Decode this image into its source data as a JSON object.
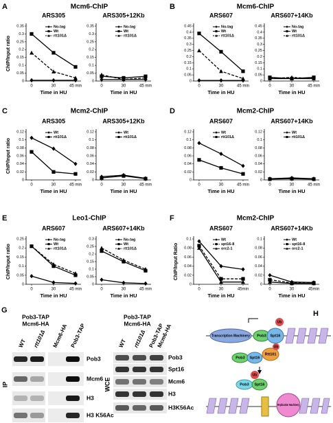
{
  "panels": [
    {
      "letter": "A",
      "title": "Mcm6-ChIP"
    },
    {
      "letter": "B",
      "title": "Mcm6-ChIP"
    },
    {
      "letter": "C",
      "title": "Mcm2-ChIP"
    },
    {
      "letter": "D",
      "title": "Mcm2-ChIP"
    },
    {
      "letter": "E",
      "title": "Leo1-ChIP"
    },
    {
      "letter": "F",
      "title": "Mcm2-ChIP"
    },
    {
      "letter": "G"
    },
    {
      "letter": "H"
    }
  ],
  "chart_data": [
    {
      "type": "line",
      "title": "ARS305",
      "ylabel": "ChIP/Input ratio",
      "xlabel": "Time in HU",
      "categories": [
        "0",
        "30",
        "45 min"
      ],
      "ylim": [
        0,
        0.35
      ],
      "yticks": [
        0,
        0.05,
        0.1,
        0.15,
        0.2,
        0.25,
        0.3,
        0.35
      ],
      "legend": "upper right",
      "series": [
        {
          "name": "No-tag",
          "color": "#000",
          "marker": "diamond",
          "dash": false,
          "values": [
            0.005,
            0.005,
            0.005
          ]
        },
        {
          "name": "Wt",
          "color": "#000",
          "marker": "square",
          "dash": false,
          "values": [
            0.3,
            0.18,
            0.09
          ]
        },
        {
          "name": "rtt101Δ",
          "color": "#000",
          "marker": "triangle",
          "dash": true,
          "values": [
            0.18,
            0.06,
            0.02
          ]
        }
      ]
    },
    {
      "type": "line",
      "title": "ARS305+12Kb",
      "xlabel": "Time in HU",
      "categories": [
        "0",
        "30",
        "45 min"
      ],
      "ylim": [
        0,
        0.35
      ],
      "yticks": [
        0,
        0.05,
        0.1,
        0.15,
        0.2,
        0.25,
        0.3,
        0.35
      ],
      "legend": "upper right",
      "series": [
        {
          "name": "No-tag",
          "color": "#000",
          "marker": "diamond",
          "dash": false,
          "values": [
            0.01,
            0.01,
            0.01
          ]
        },
        {
          "name": "Wt",
          "color": "#000",
          "marker": "square",
          "dash": false,
          "values": [
            0.03,
            0.02,
            0.03
          ]
        },
        {
          "name": "rtt101Δ",
          "color": "#000",
          "marker": "triangle",
          "dash": true,
          "values": [
            0.04,
            0.01,
            0.02
          ]
        }
      ]
    },
    {
      "type": "line",
      "title": "ARS607",
      "xlabel": "Time in HU",
      "categories": [
        "0",
        "30",
        "45 min"
      ],
      "ylim": [
        0,
        0.45
      ],
      "yticks": [
        0,
        0.05,
        0.1,
        0.15,
        0.2,
        0.25,
        0.3,
        0.35,
        0.4,
        0.45
      ],
      "legend": "upper right",
      "series": [
        {
          "name": "No-tag",
          "color": "#000",
          "marker": "diamond",
          "dash": false,
          "values": [
            0.005,
            0.005,
            0.005
          ]
        },
        {
          "name": "Wt",
          "color": "#000",
          "marker": "square",
          "dash": false,
          "values": [
            0.39,
            0.24,
            0.08
          ]
        },
        {
          "name": "rtt101Δ",
          "color": "#000",
          "marker": "triangle",
          "dash": true,
          "values": [
            0.25,
            0.08,
            0.02
          ]
        }
      ]
    },
    {
      "type": "line",
      "title": "ARS607+14Kb",
      "xlabel": "Time in HU",
      "categories": [
        "0",
        "30",
        "45 min"
      ],
      "ylim": [
        0,
        0.45
      ],
      "yticks": [
        0,
        0.05,
        0.1,
        0.15,
        0.2,
        0.25,
        0.3,
        0.35,
        0.4,
        0.45
      ],
      "legend": "upper right",
      "series": [
        {
          "name": "No-tag",
          "color": "#000",
          "marker": "diamond",
          "dash": false,
          "values": [
            0.02,
            0.02,
            0.02
          ]
        },
        {
          "name": "Wt",
          "color": "#000",
          "marker": "square",
          "dash": false,
          "values": [
            0.03,
            0.02,
            0.03
          ]
        },
        {
          "name": "rtt101Δ",
          "color": "#000",
          "marker": "triangle",
          "dash": true,
          "values": [
            0.02,
            0.03,
            0.02
          ]
        }
      ]
    },
    {
      "type": "line",
      "title": "ARS305",
      "ylabel": "ChIP/Input ratio",
      "xlabel": "Time in HU",
      "categories": [
        "0",
        "30",
        "45 min"
      ],
      "ylim": [
        0,
        0.12
      ],
      "yticks": [
        0,
        0.02,
        0.04,
        0.06,
        0.08,
        0.1,
        0.12
      ],
      "legend": "upper right",
      "series": [
        {
          "name": "Wt",
          "color": "#000",
          "marker": "diamond",
          "dash": false,
          "values": [
            0.105,
            0.078,
            0.04
          ]
        },
        {
          "name": "rtt101Δ",
          "color": "#000",
          "marker": "square",
          "dash": false,
          "values": [
            0.07,
            0.02,
            0.015
          ]
        }
      ]
    },
    {
      "type": "line",
      "title": "ARS305+12Kb",
      "xlabel": "Time in HU",
      "categories": [
        "0",
        "30",
        "45 min"
      ],
      "ylim": [
        0,
        0.12
      ],
      "yticks": [
        0,
        0.02,
        0.04,
        0.06,
        0.08,
        0.1,
        0.12
      ],
      "legend": "upper right",
      "series": [
        {
          "name": "Wt",
          "color": "#000",
          "marker": "diamond",
          "dash": false,
          "values": [
            0.008,
            0.012,
            0.004
          ]
        },
        {
          "name": "rtt101Δ",
          "color": "#000",
          "marker": "square",
          "dash": false,
          "values": [
            0.005,
            0.01,
            0.003
          ]
        }
      ]
    },
    {
      "type": "line",
      "title": "ARS607",
      "xlabel": "Time in HU",
      "categories": [
        "0",
        "30",
        "45 min"
      ],
      "ylim": [
        0,
        0.12
      ],
      "yticks": [
        0,
        0.02,
        0.04,
        0.06,
        0.08,
        0.1,
        0.12
      ],
      "legend": "upper right",
      "series": [
        {
          "name": "Wt",
          "color": "#000",
          "marker": "diamond",
          "dash": false,
          "values": [
            0.092,
            0.065,
            0.035
          ]
        },
        {
          "name": "rtt101Δ",
          "color": "#000",
          "marker": "square",
          "dash": false,
          "values": [
            0.05,
            0.03,
            0.015
          ]
        }
      ]
    },
    {
      "type": "line",
      "title": "ARS607+14Kb",
      "xlabel": "Time in HU",
      "categories": [
        "0",
        "30",
        "45 min"
      ],
      "ylim": [
        0,
        0.12
      ],
      "yticks": [
        0,
        0.02,
        0.04,
        0.06,
        0.08,
        0.1,
        0.12
      ],
      "legend": "upper right",
      "series": [
        {
          "name": "Wt",
          "color": "#000",
          "marker": "diamond",
          "dash": false,
          "values": [
            0.003,
            0.005,
            0.003
          ]
        },
        {
          "name": "rtt101Δ",
          "color": "#000",
          "marker": "square",
          "dash": false,
          "values": [
            0.002,
            0.003,
            0.002
          ]
        }
      ]
    },
    {
      "type": "line",
      "title": "ARS607",
      "ylabel": "ChIP/Input ratio",
      "xlabel": "Time in HU",
      "categories": [
        "0",
        "30",
        "45 min"
      ],
      "ylim": [
        0,
        0.25
      ],
      "yticks": [
        0,
        0.05,
        0.1,
        0.15,
        0.2,
        0.25
      ],
      "legend": "upper right",
      "series": [
        {
          "name": "No-tag",
          "color": "#000",
          "marker": "diamond",
          "dash": false,
          "values": [
            0.045,
            0.01,
            0.005
          ]
        },
        {
          "name": "Wt",
          "color": "#000",
          "marker": "square",
          "dash": false,
          "values": [
            0.21,
            0.1,
            0.05
          ]
        },
        {
          "name": "rtt101Δ",
          "color": "#000",
          "marker": "triangle",
          "dash": true,
          "values": [
            0.21,
            0.11,
            0.06
          ]
        }
      ]
    },
    {
      "type": "line",
      "title": "ARS607+14Kb",
      "xlabel": "Time in HU",
      "categories": [
        "0",
        "30",
        "45 min"
      ],
      "ylim": [
        0,
        0.3
      ],
      "yticks": [
        0,
        0.05,
        0.1,
        0.15,
        0.2,
        0.25,
        0.3
      ],
      "legend": "upper right",
      "series": [
        {
          "name": "No-tag",
          "color": "#000",
          "marker": "diamond",
          "dash": false,
          "values": [
            0.03,
            0.01,
            0.005
          ]
        },
        {
          "name": "Wt",
          "color": "#000",
          "marker": "square",
          "dash": false,
          "values": [
            0.22,
            0.15,
            0.09
          ]
        },
        {
          "name": "rtt101Δ",
          "color": "#000",
          "marker": "triangle",
          "dash": true,
          "values": [
            0.24,
            0.16,
            0.1
          ]
        }
      ]
    },
    {
      "type": "line",
      "title": "ARS607",
      "ylabel": "ChIP/Input Ratio",
      "xlabel": "Time in HU",
      "categories": [
        "0",
        "30",
        "45min"
      ],
      "ylim": [
        0,
        0.1
      ],
      "yticks": [
        0,
        0.02,
        0.04,
        0.06,
        0.08,
        0.1
      ],
      "legend": "upper right",
      "series": [
        {
          "name": "Wt",
          "color": "#000",
          "marker": "diamond",
          "dash": false,
          "values": [
            0.095,
            0.04,
            0.033
          ]
        },
        {
          "name": "spt16-8",
          "color": "#000",
          "marker": "square",
          "dash": true,
          "values": [
            0.085,
            0.012,
            0.012
          ]
        },
        {
          "name": "orc2-1",
          "color": "#000",
          "marker": "triangle",
          "dash": false,
          "values": [
            0.08,
            0.005,
            0.005
          ]
        }
      ]
    },
    {
      "type": "line",
      "title": "ARS607+14Kb",
      "xlabel": "Time in HU",
      "categories": [
        "0",
        "30",
        "45min"
      ],
      "ylim": [
        0,
        0.1
      ],
      "yticks": [
        0,
        0.02,
        0.04,
        0.06,
        0.08,
        0.1
      ],
      "legend": "upper right",
      "series": [
        {
          "name": "Wt",
          "color": "#000",
          "marker": "diamond",
          "dash": false,
          "values": [
            0.02,
            0.005,
            0.004
          ]
        },
        {
          "name": "spt16-8",
          "color": "#000",
          "marker": "square",
          "dash": true,
          "values": [
            0.01,
            0.003,
            0.003
          ]
        },
        {
          "name": "orc2-1",
          "color": "#000",
          "marker": "triangle",
          "dash": false,
          "values": [
            0.005,
            0.002,
            0.002
          ]
        }
      ]
    }
  ],
  "blots": [
    {
      "title": [
        "Pob3-TAP",
        "Mcm6-HA"
      ],
      "side": "IP",
      "lanes": [
        "WT",
        "rtt101Δ",
        "Mcm6-HA",
        "Pob3-TAP"
      ],
      "rows": [
        "Pob3",
        "Mcm6",
        "H3",
        "H3 K56Ac"
      ]
    },
    {
      "title": [
        "Pob3-TAP",
        "Mcm6-HA"
      ],
      "side": "WCE",
      "lanes": [
        "WT",
        "rtt101Δ",
        "Pob3-TAP",
        "Mcm6-HA"
      ],
      "rows": [
        "Pob3",
        "Spt16",
        "Mcm6",
        "H3",
        "H3K56Ac"
      ]
    }
  ],
  "diagram": {
    "labels": [
      "Transcription Machinery",
      "Pob3",
      "Spt16",
      "Ub",
      "Pob3",
      "Spt16",
      "Rtt101",
      "Ub",
      "Ub",
      "Pob3",
      "Spt16",
      "Replication Machinery"
    ]
  }
}
